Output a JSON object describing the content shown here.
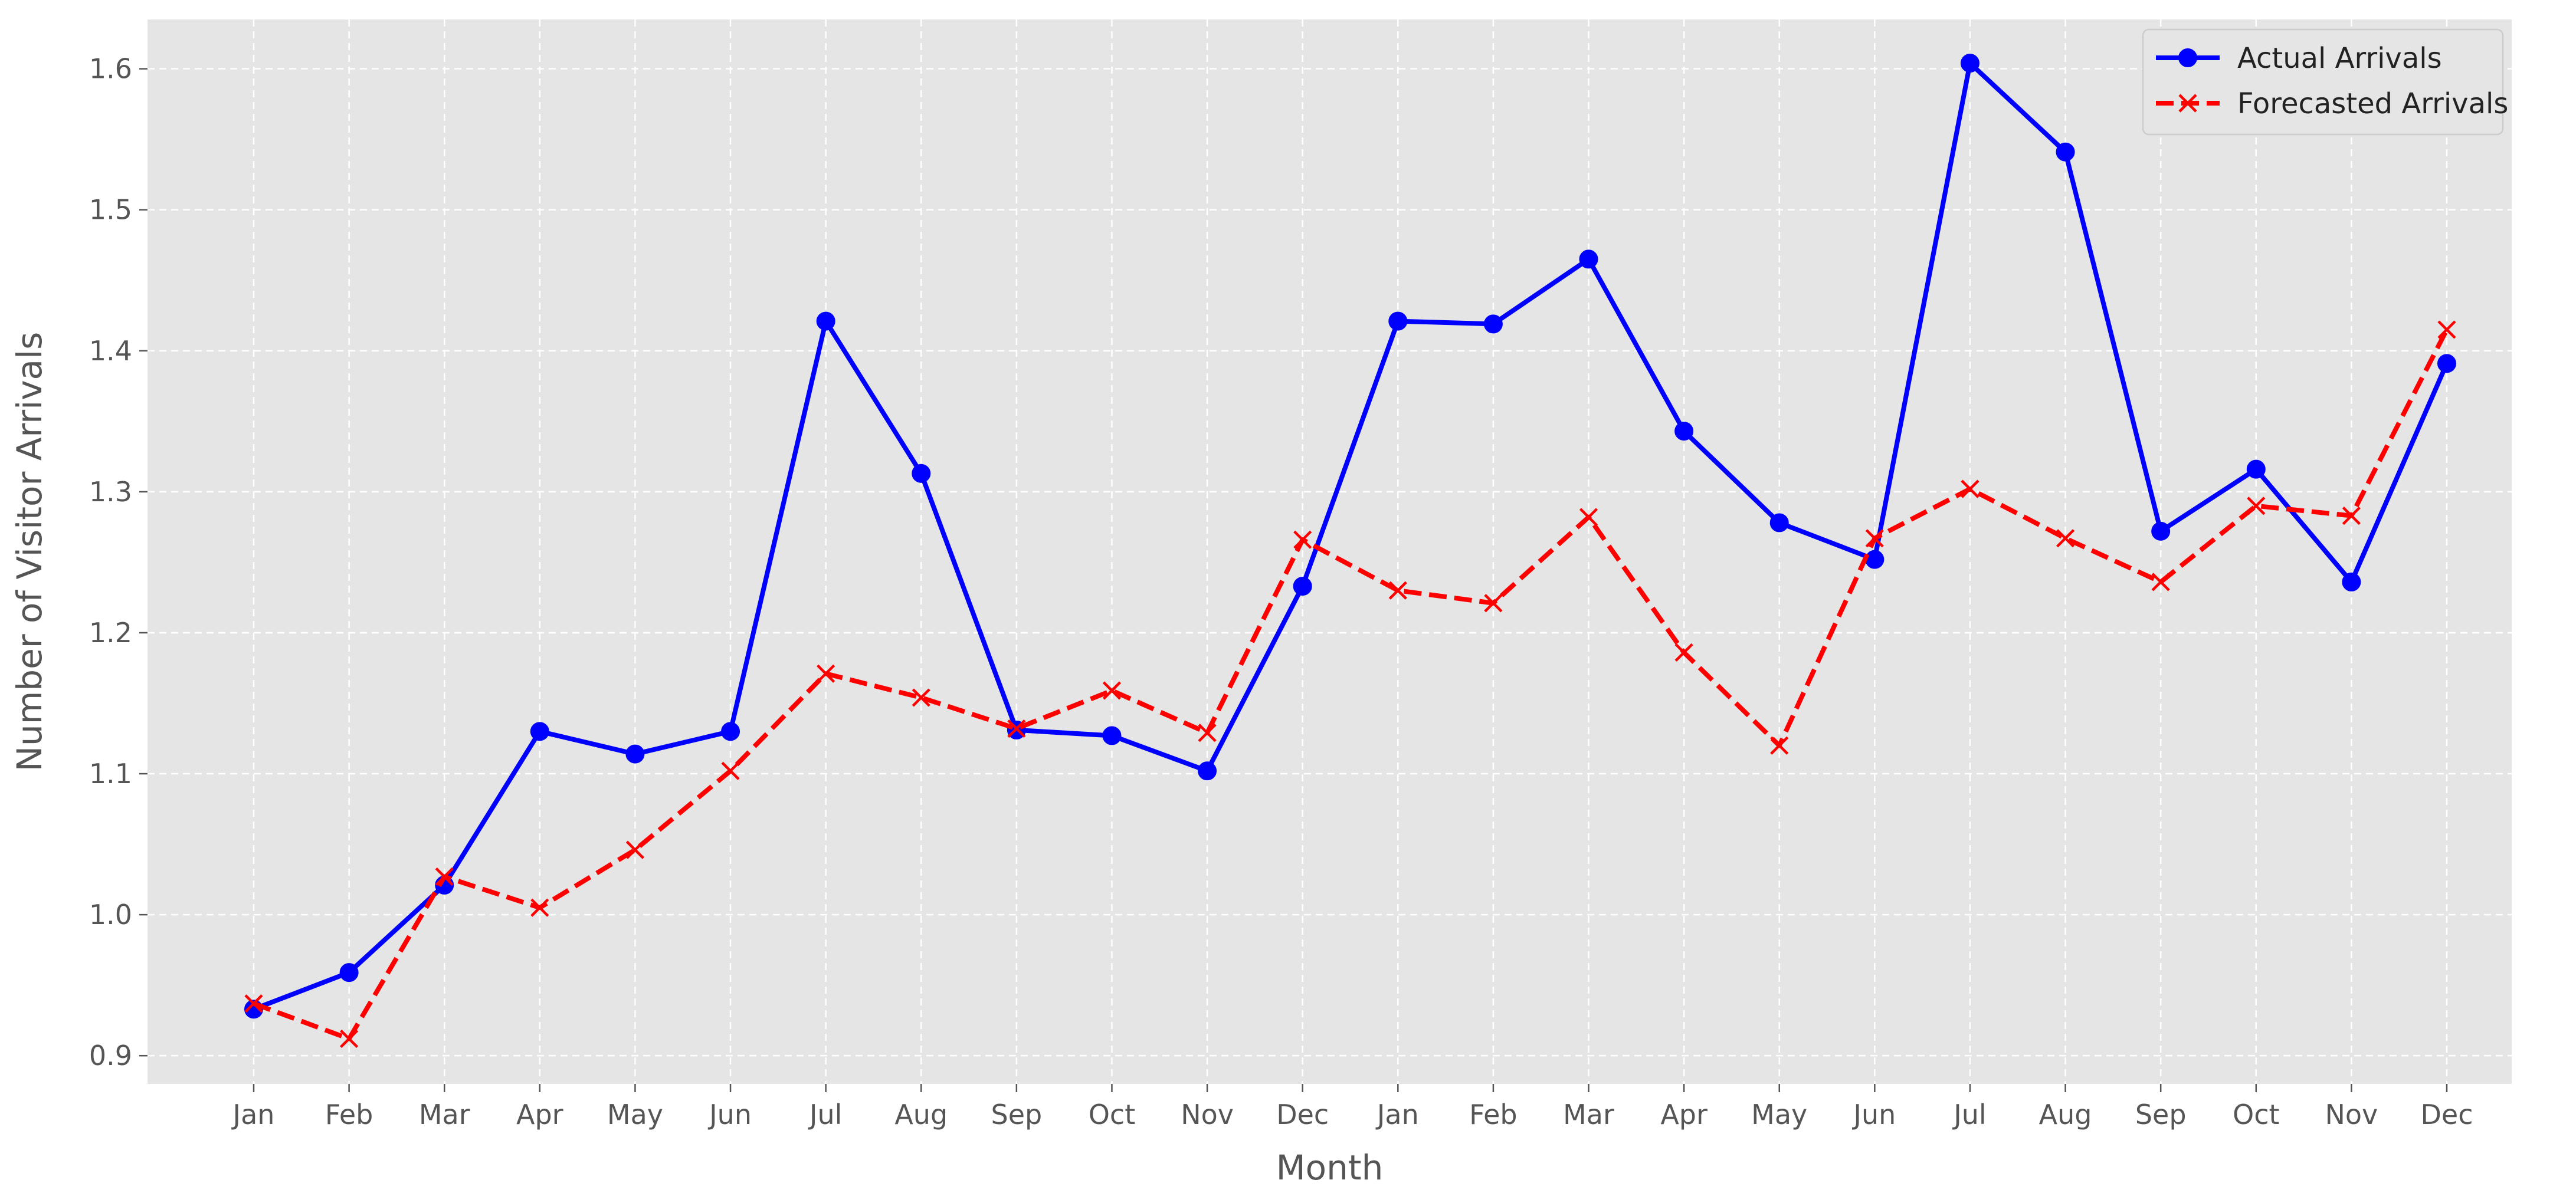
{
  "chart_data": {
    "type": "line",
    "title": "",
    "xlabel": "Month",
    "ylabel": "Number of Visitor Arrivals",
    "categories": [
      "Jan",
      "Feb",
      "Mar",
      "Apr",
      "May",
      "Jun",
      "Jul",
      "Aug",
      "Sep",
      "Oct",
      "Nov",
      "Dec",
      "Jan",
      "Feb",
      "Mar",
      "Apr",
      "May",
      "Jun",
      "Jul",
      "Aug",
      "Sep",
      "Oct",
      "Nov",
      "Dec"
    ],
    "ylim": [
      0.88,
      1.635
    ],
    "yticks": [
      "0.9",
      "1.0",
      "1.1",
      "1.2",
      "1.3",
      "1.4",
      "1.5",
      "1.6"
    ],
    "grid": true,
    "legend_position": "top-right",
    "series": [
      {
        "name": "Actual Arrivals",
        "color": "#0000ff",
        "style": "solid",
        "marker": "circle",
        "values": [
          0.933,
          0.959,
          1.021,
          1.13,
          1.114,
          1.13,
          1.421,
          1.313,
          1.131,
          1.127,
          1.102,
          1.233,
          1.421,
          1.419,
          1.465,
          1.343,
          1.278,
          1.252,
          1.604,
          1.541,
          1.272,
          1.316,
          1.236,
          1.391
        ]
      },
      {
        "name": "Forecasted Arrivals",
        "color": "#ff0000",
        "style": "dashed",
        "marker": "x",
        "values": [
          0.937,
          0.912,
          1.027,
          1.005,
          1.046,
          1.102,
          1.171,
          1.154,
          1.132,
          1.159,
          1.129,
          1.266,
          1.23,
          1.221,
          1.282,
          1.186,
          1.12,
          1.267,
          1.302,
          1.267,
          1.236,
          1.29,
          1.283,
          1.415
        ]
      }
    ],
    "colors": {
      "plot_background": "#e5e5e5",
      "grid": "#ffffff",
      "tick_text": "#555555"
    }
  }
}
